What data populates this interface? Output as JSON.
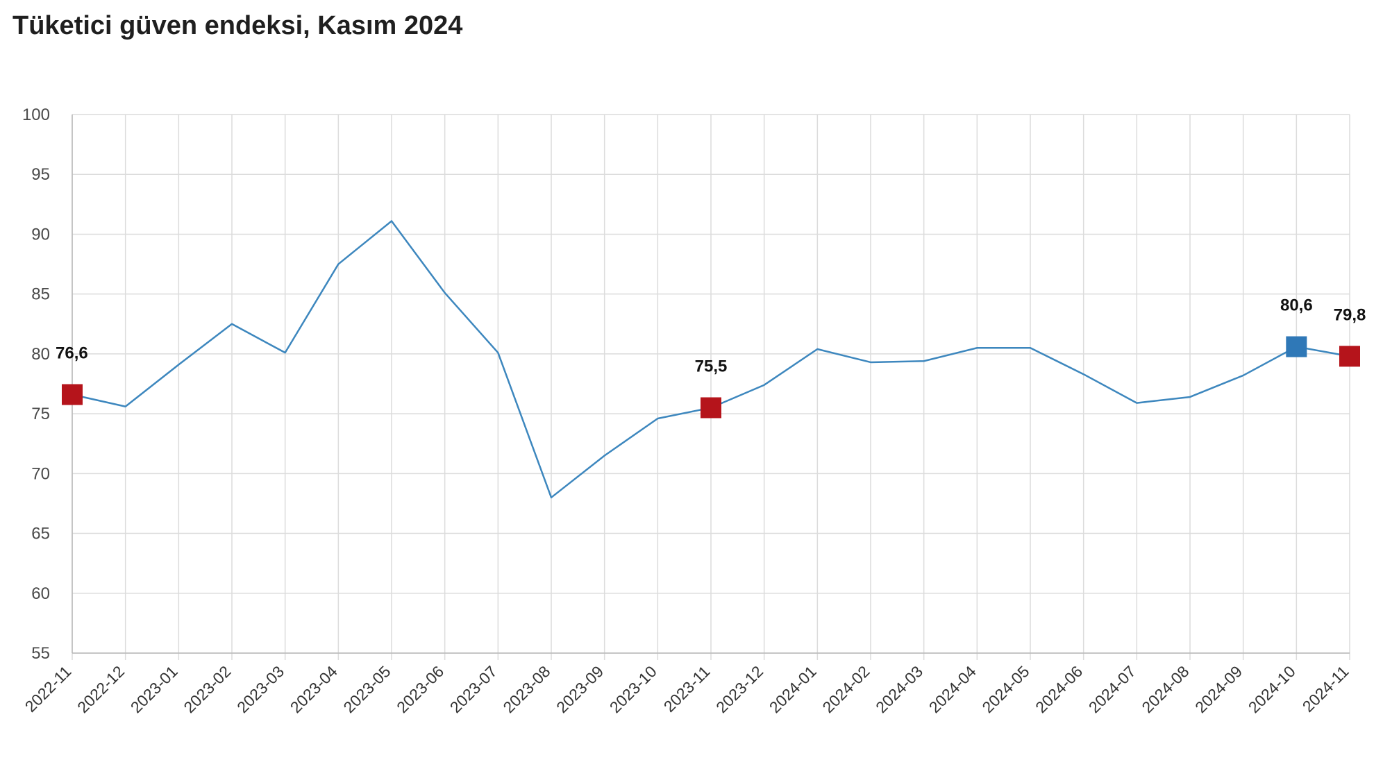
{
  "title": "Tüketici güven endeksi, Kasım 2024",
  "colors": {
    "line": "#3d87be",
    "marker_red": "#b5141b",
    "marker_blue": "#2f78b7",
    "grid": "#dcdcdc",
    "axis": "#b8b8b8"
  },
  "chart_data": {
    "type": "line",
    "x": [
      "2022-11",
      "2022-12",
      "2023-01",
      "2023-02",
      "2023-03",
      "2023-04",
      "2023-05",
      "2023-06",
      "2023-07",
      "2023-08",
      "2023-09",
      "2023-10",
      "2023-11",
      "2023-12",
      "2024-01",
      "2024-02",
      "2024-03",
      "2024-04",
      "2024-05",
      "2024-06",
      "2024-07",
      "2024-08",
      "2024-09",
      "2024-10",
      "2024-11"
    ],
    "series": [
      {
        "values": [
          76.6,
          75.6,
          79.1,
          82.5,
          80.1,
          87.5,
          91.1,
          85.1,
          80.1,
          68.0,
          71.5,
          74.6,
          75.5,
          77.4,
          80.4,
          79.3,
          79.4,
          80.5,
          80.5,
          78.3,
          75.9,
          76.4,
          78.2,
          80.6,
          79.8
        ],
        "color": "#3d87be"
      }
    ],
    "highlights": [
      {
        "x": "2022-11",
        "value": 76.6,
        "label": "76,6",
        "color": "#b5141b"
      },
      {
        "x": "2023-11",
        "value": 75.5,
        "label": "75,5",
        "color": "#b5141b"
      },
      {
        "x": "2024-10",
        "value": 80.6,
        "label": "80,6",
        "color": "#2f78b7"
      },
      {
        "x": "2024-11",
        "value": 79.8,
        "label": "79,8",
        "color": "#b5141b"
      }
    ],
    "ylim": [
      55,
      100
    ],
    "yticks": [
      "55",
      "60",
      "65",
      "70",
      "75",
      "80",
      "85",
      "90",
      "95",
      "100"
    ],
    "xlabel": "",
    "ylabel": "",
    "grid": true,
    "legend": "none"
  }
}
